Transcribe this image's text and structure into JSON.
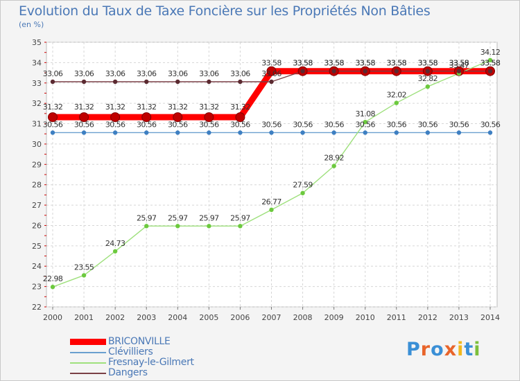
{
  "title": "Evolution du Taux de Taxe Foncière sur les Propriétés Non Bâties",
  "unit_label": "(en %)",
  "logo_text": "Proxiti",
  "chart_data": {
    "type": "line",
    "title": "Evolution du Taux de Taxe Foncière sur les Propriétés Non Bâties",
    "ylabel": "(en %)",
    "xlabel": "",
    "ylim": [
      22,
      35
    ],
    "yticks": [
      22,
      23,
      24,
      25,
      26,
      27,
      28,
      29,
      30,
      31,
      32,
      33,
      34,
      35
    ],
    "grid": true,
    "legend": "bottom-left",
    "x": [
      "2000",
      "2001",
      "2002",
      "2003",
      "2004",
      "2005",
      "2006",
      "2007",
      "2008",
      "2009",
      "2010",
      "2011",
      "2012",
      "2013",
      "2014"
    ],
    "series": [
      {
        "name": "BRICONVILLE",
        "color": "#ff0000",
        "values": [
          31.32,
          31.32,
          31.32,
          31.32,
          31.32,
          31.32,
          31.32,
          33.58,
          33.58,
          33.58,
          33.58,
          33.58,
          33.58,
          33.58,
          33.58
        ]
      },
      {
        "name": "Clévilliers",
        "color": "#6a9fcf",
        "values": [
          30.56,
          30.56,
          30.56,
          30.56,
          30.56,
          30.56,
          30.56,
          30.56,
          30.56,
          30.56,
          30.56,
          30.56,
          30.56,
          30.56,
          30.56
        ]
      },
      {
        "name": "Fresnay-le-Gilmert",
        "color": "#9ee07c",
        "values": [
          22.98,
          23.55,
          24.73,
          25.97,
          25.97,
          25.97,
          25.97,
          26.77,
          27.59,
          28.92,
          31.08,
          32.02,
          32.82,
          33.47,
          34.12
        ]
      },
      {
        "name": "Dangers",
        "color": "#7a3f45",
        "values": [
          33.06,
          33.06,
          33.06,
          33.06,
          33.06,
          33.06,
          33.06,
          33.06,
          33.58,
          33.58,
          33.58,
          33.58,
          33.58,
          33.58,
          33.58
        ]
      }
    ]
  }
}
